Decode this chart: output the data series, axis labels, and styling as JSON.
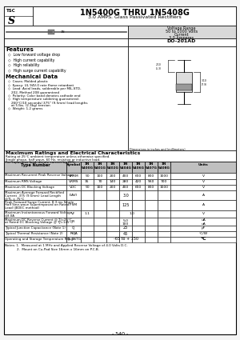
{
  "title_main": "1N5400G THRU 1N5408G",
  "title_sub": "3.0 AMPS. Glass Passivated Rectifiers",
  "voltage_range_lines": [
    "Voltage Range",
    "50 to 1000 Volts",
    "Current",
    "3.0 Amperes"
  ],
  "package": "DO-201AD",
  "features_title": "Features",
  "features": [
    "Low forward voltage drop",
    "High current capability",
    "High reliability",
    "High surge current capability"
  ],
  "mech_title": "Mechanical Data",
  "mech_items": [
    [
      "Cases: Molded plastic"
    ],
    [
      "Epoxy: UL 94V-0 rate flame retardant"
    ],
    [
      "Lead: Axial leads, solderable per MIL-STD-",
      "202, Method 208 guaranteed"
    ],
    [
      "Polarity: Color band denotes cathode end"
    ],
    [
      "High temperature soldering guaranteed:",
      "260°C/10 seconds/.375\" (9.5mm) lead lengths",
      "at 5 lbs. (2.3kg) tension"
    ],
    [
      "Weight: 1.2 grams"
    ]
  ],
  "ratings_title": "Maximum Ratings and Electrical Characteristics",
  "ratings_sub1": "Rating at 25°C ambient temperature unless otherwise specified.",
  "ratings_sub2": "Single phase, half wave, 60 Hz, resistive or inductive load.",
  "ratings_sub3": "For capacitive load, derate current by 20%.",
  "table_col_headers": [
    "1N\n5400G",
    "1N\n5401G",
    "1N\n5402G",
    "1N\n5404G",
    "1N\n5406G",
    "1N\n5407G",
    "1N\n5408G"
  ],
  "table_rows": [
    {
      "param": "Maximum Recurrent Peak Reverse Voltage",
      "symbol": "VRRM",
      "values": [
        "50",
        "100",
        "200",
        "400",
        "600",
        "800",
        "1000"
      ],
      "unit": "V",
      "mode": "individual"
    },
    {
      "param": "Maximum RMS Voltage",
      "symbol": "VRMS",
      "values": [
        "35",
        "70",
        "140",
        "280",
        "420",
        "560",
        "700"
      ],
      "unit": "V",
      "mode": "individual"
    },
    {
      "param": "Maximum DC Blocking Voltage",
      "symbol": "VDC",
      "values": [
        "50",
        "100",
        "200",
        "400",
        "600",
        "800",
        "1000"
      ],
      "unit": "V",
      "mode": "individual"
    },
    {
      "param": "Maximum Average Forward Rectified\nCurrent .375 (9.5mm) Lead Length\n@TL = 75°C",
      "symbol": "I(AV)",
      "values": [
        "3.0"
      ],
      "unit": "A",
      "mode": "span"
    },
    {
      "param": "Peak Forward Surge Current, 8.3 ms Single\nHalf Sine-wave Superimposed on Rated\nLoad (JEDEC method)",
      "symbol": "IFSM",
      "values": [
        "125"
      ],
      "unit": "A",
      "mode": "span"
    },
    {
      "param": "Maximum Instantaneous Forward Voltage\n@3.0A",
      "symbol": "VF",
      "val_left": "1.1",
      "val_right": "1.0",
      "unit": "V",
      "mode": "split"
    },
    {
      "param": "Maximum DC Reverse Current @ TJ=25°C\nat Rated DC Blocking Voltage @ TJ=125°C",
      "symbol": "IR",
      "val_top": "5.0",
      "val_bot": "100",
      "unit_top": "uA",
      "unit_bot": "uA",
      "unit": "uA",
      "mode": "two_rows"
    },
    {
      "param": "Typical Junction Capacitance (Note 1)",
      "symbol": "CJ",
      "values": [
        "25"
      ],
      "unit": "pF",
      "mode": "span"
    },
    {
      "param": "Typical Thermal Resistance (Note 2)",
      "symbol": "RθJA",
      "values": [
        "45"
      ],
      "unit": "°C/W",
      "mode": "span"
    },
    {
      "param": "Operating and Storage Temperature Range",
      "symbol": "TJ, TSTG",
      "values": [
        "-65 to + 150"
      ],
      "unit": "°C",
      "mode": "span"
    }
  ],
  "notes": [
    "Notes: 1.  Measured at 1 MHz and Applied Reverse Voltage of 4.0 Volts D.C.",
    "            2.  Mount on Cu-Pad Size 16mm x 16mm on P.C.B."
  ],
  "page_num": "- 540 -",
  "bg_color": "#f5f5f5",
  "white": "#ffffff",
  "gray_light": "#d8d8d8",
  "gray_header": "#c0c0c0",
  "black": "#000000"
}
